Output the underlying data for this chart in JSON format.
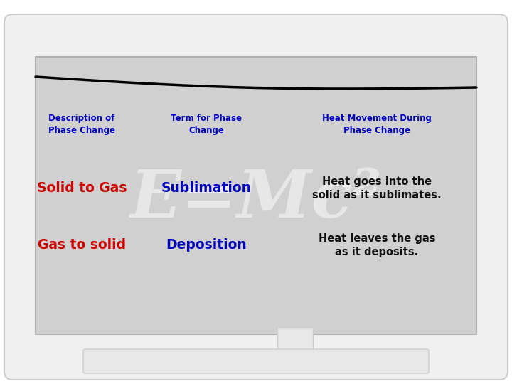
{
  "background_outer": "#ffffff",
  "monitor_casing_color": "#f0f0f0",
  "monitor_casing_edge": "#cccccc",
  "screen_color": "#d0d0d0",
  "screen_edge": "#b0b0b0",
  "stand_color": "#e8e8e8",
  "stand_edge": "#cccccc",
  "header_color": "#0000bb",
  "red_color": "#cc0000",
  "blue_color": "#0000bb",
  "black_color": "#111111",
  "white_watermark": "#ffffff",
  "col1_header": "Description of\nPhase Change",
  "col2_header": "Term for Phase\nChange",
  "col3_header": "Heat Movement During\nPhase Change",
  "row1_col1": "Solid to Gas",
  "row1_col2": "Sublimation",
  "row1_col3": "Heat goes into the\nsolid as it sublimates.",
  "row2_col1": "Gas to solid",
  "row2_col2": "Deposition",
  "row2_col3": "Heat leaves the gas\nas it deposits.",
  "watermark": "E=Mc²"
}
